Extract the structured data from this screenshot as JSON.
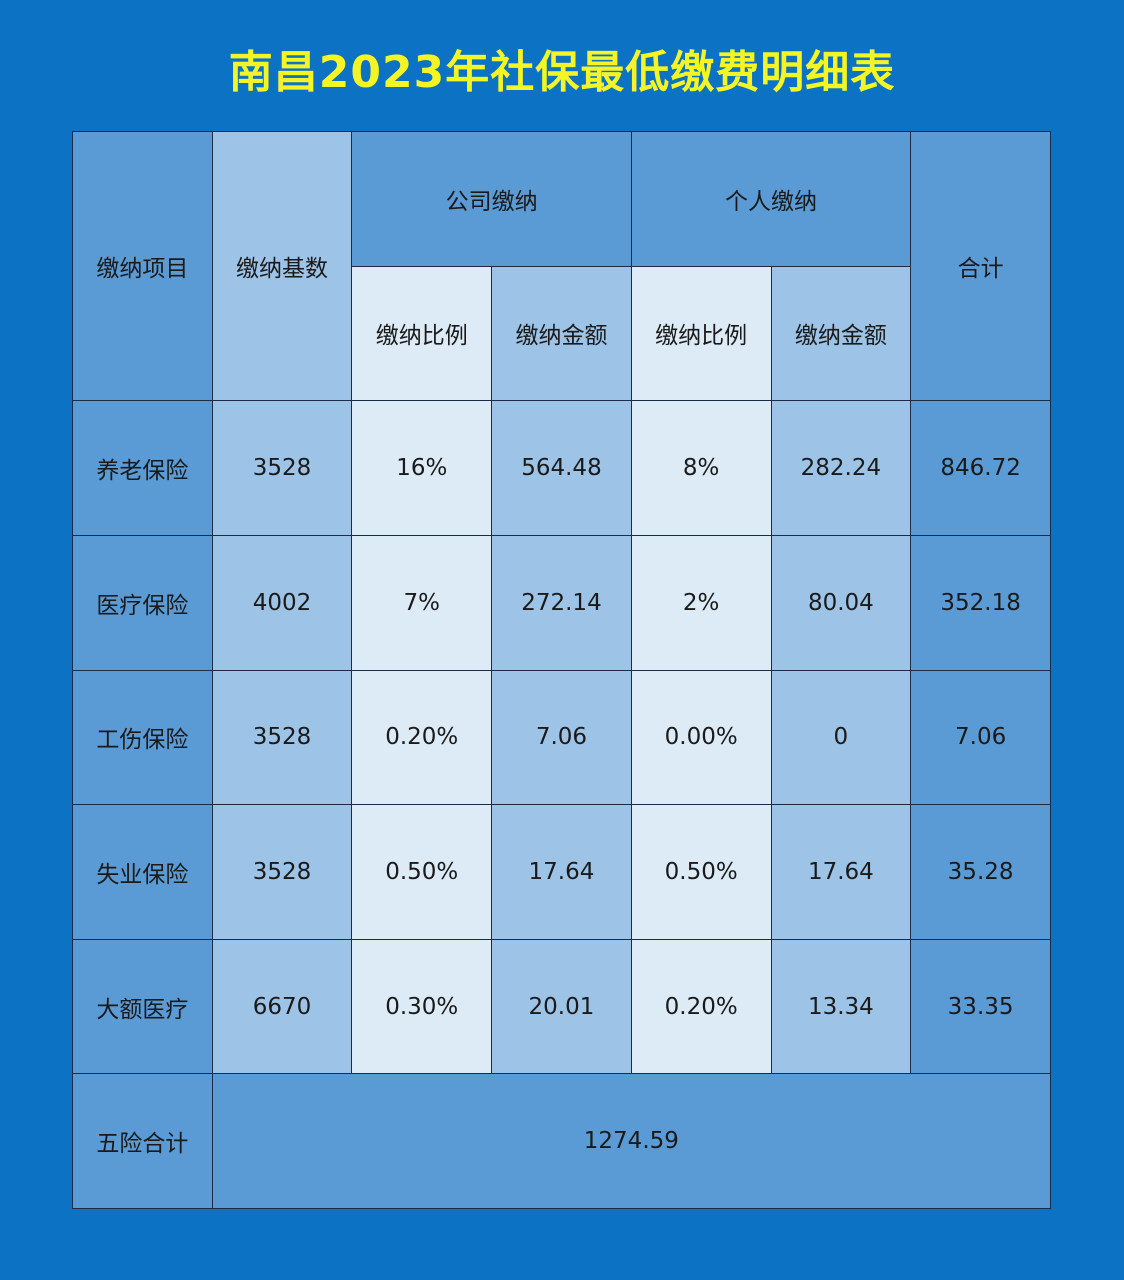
{
  "title": "南昌2023年社保最低缴费明细表",
  "colors": {
    "background": "#0b72c4",
    "title": "#f5f526",
    "dark_cell": "#5b9bd5",
    "mid_cell": "#9dc3e6",
    "light_cell": "#ddebf7"
  },
  "headers": {
    "item": "缴纳项目",
    "base": "缴纳基数",
    "company": "公司缴纳",
    "personal": "个人缴纳",
    "total": "合计",
    "ratio": "缴纳比例",
    "amount": "缴纳金额"
  },
  "rows": [
    {
      "item": "养老保险",
      "base": "3528",
      "c_ratio": "16%",
      "c_amount": "564.48",
      "p_ratio": "8%",
      "p_amount": "282.24",
      "total": "846.72"
    },
    {
      "item": "医疗保险",
      "base": "4002",
      "c_ratio": "7%",
      "c_amount": "272.14",
      "p_ratio": "2%",
      "p_amount": "80.04",
      "total": "352.18"
    },
    {
      "item": "工伤保险",
      "base": "3528",
      "c_ratio": "0.20%",
      "c_amount": "7.06",
      "p_ratio": "0.00%",
      "p_amount": "0",
      "total": "7.06"
    },
    {
      "item": "失业保险",
      "base": "3528",
      "c_ratio": "0.50%",
      "c_amount": "17.64",
      "p_ratio": "0.50%",
      "p_amount": "17.64",
      "total": "35.28"
    },
    {
      "item": "大额医疗",
      "base": "6670",
      "c_ratio": "0.30%",
      "c_amount": "20.01",
      "p_ratio": "0.20%",
      "p_amount": "13.34",
      "total": "33.35"
    }
  ],
  "grand_total": {
    "label": "五险合计",
    "value": "1274.59"
  }
}
